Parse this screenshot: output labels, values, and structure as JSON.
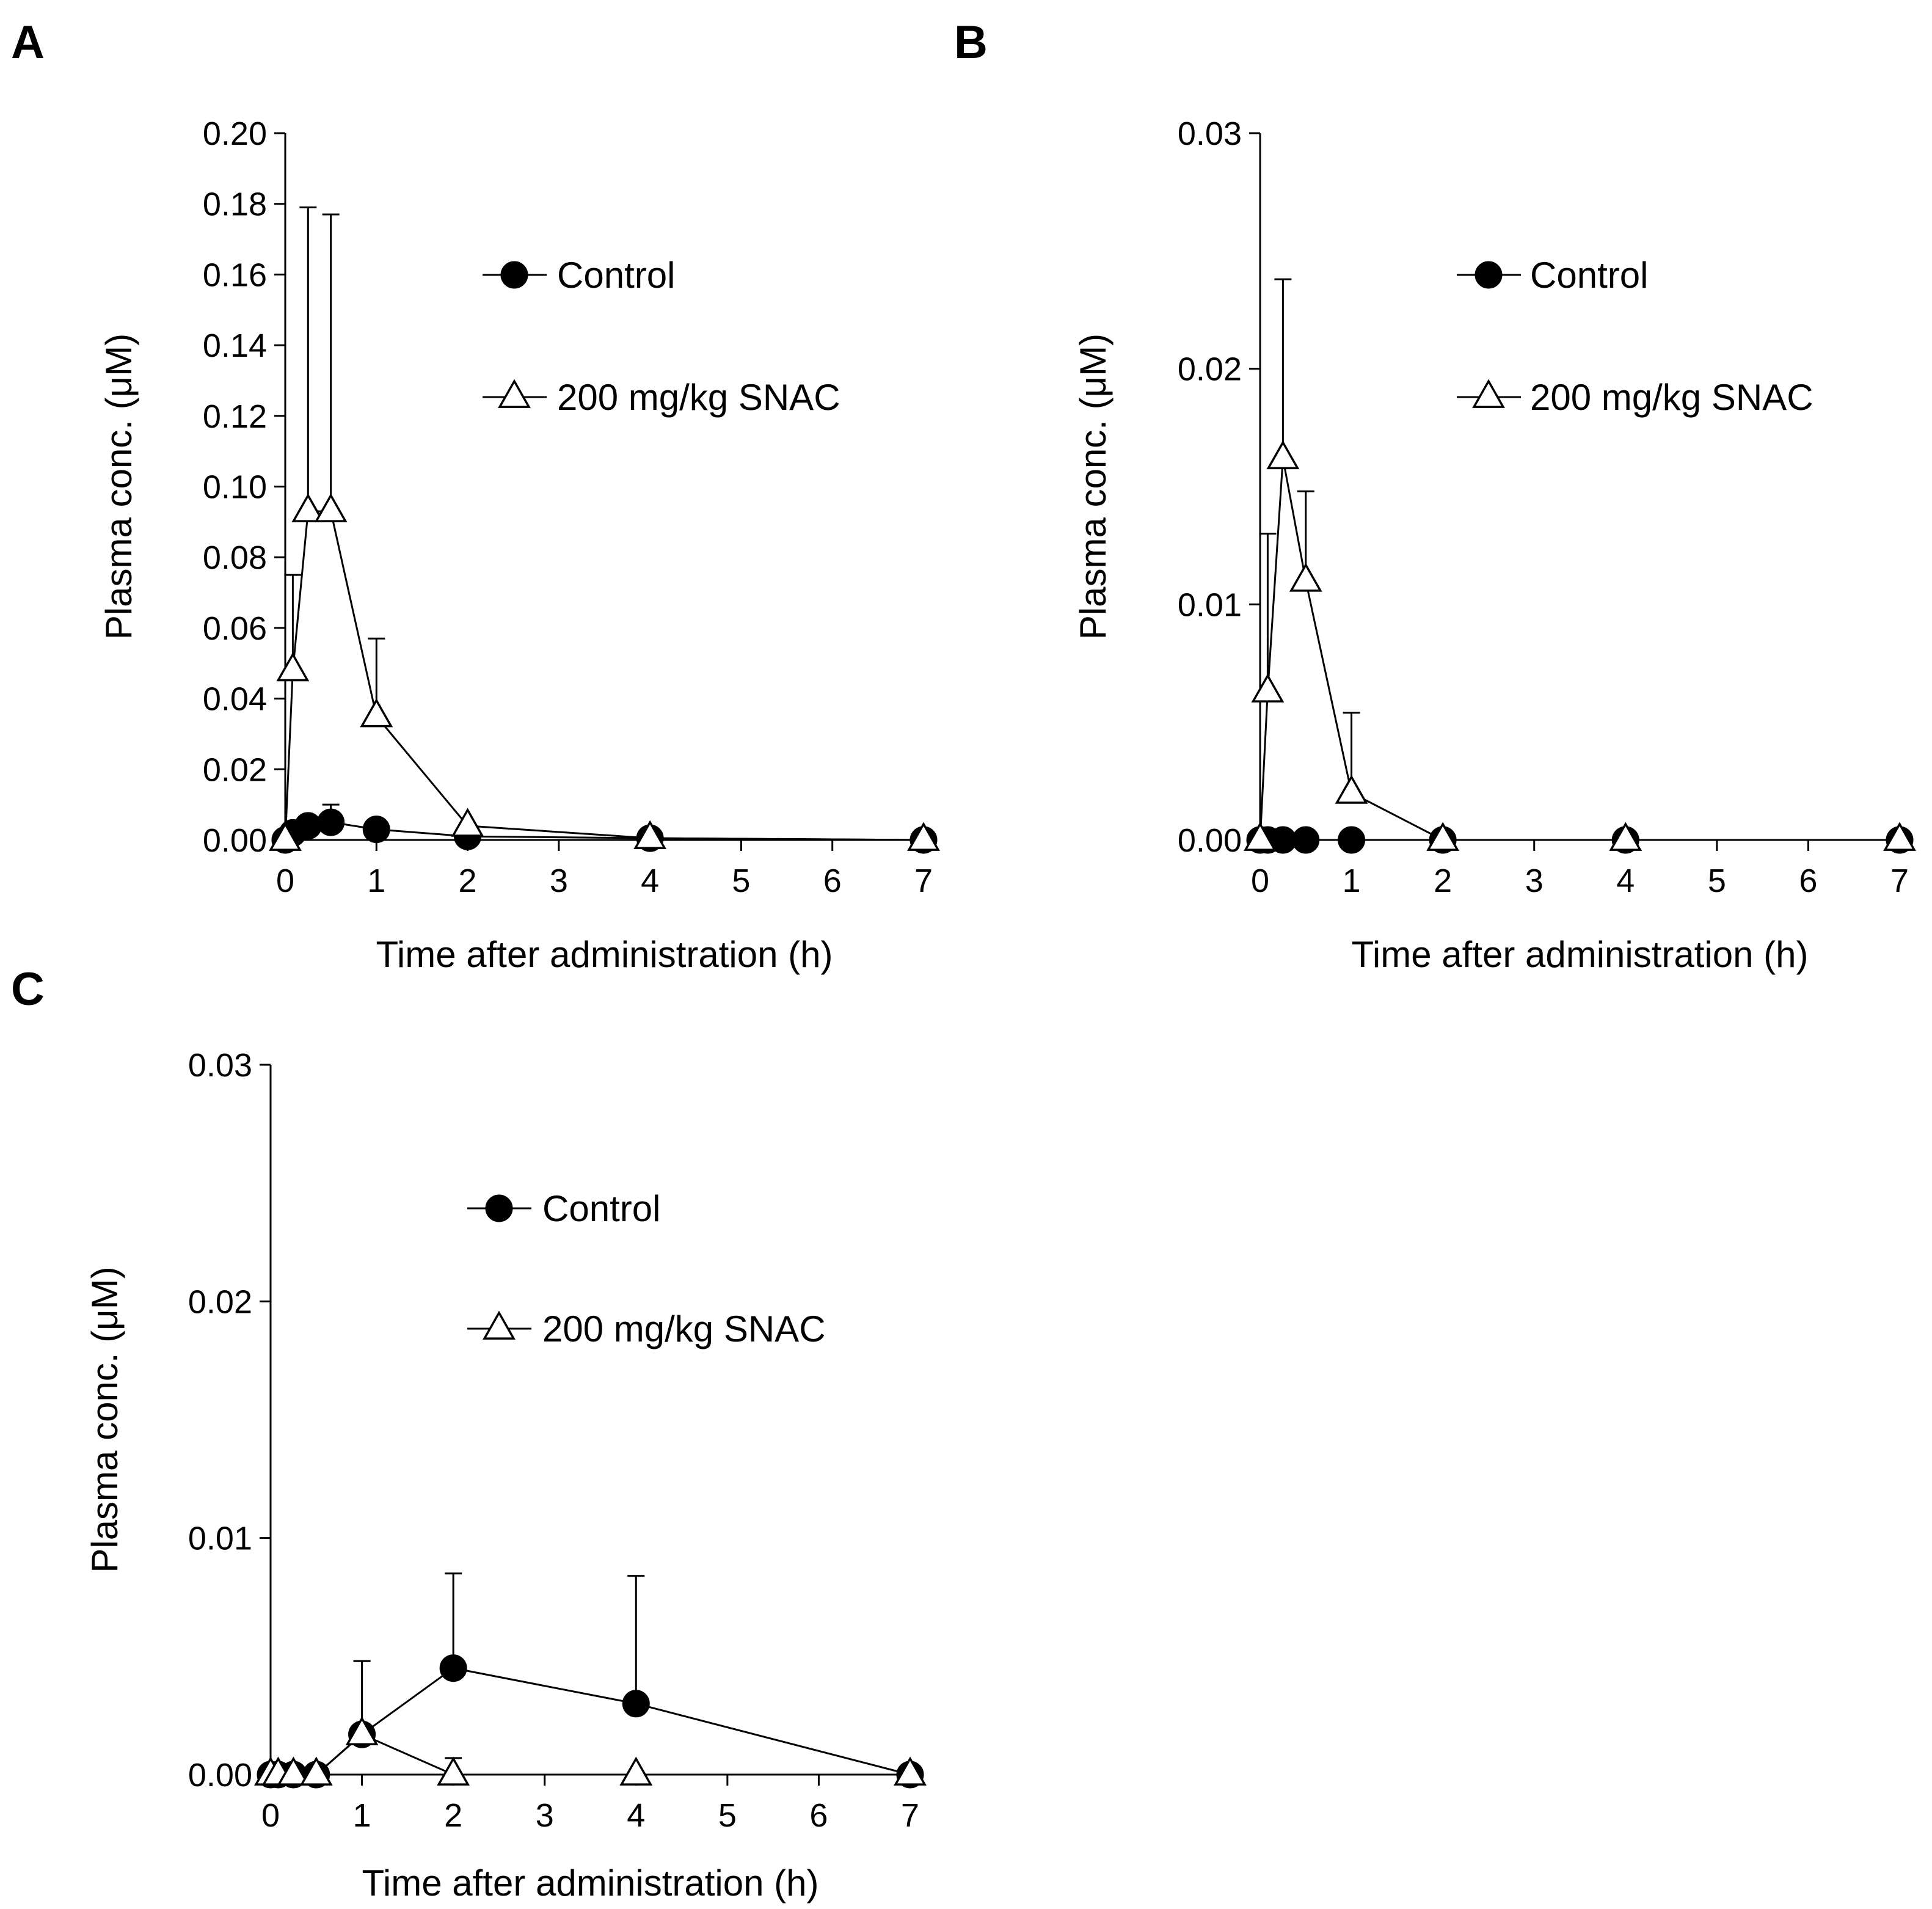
{
  "chart_data": [
    {
      "panel": "A",
      "type": "line",
      "xlabel": "Time after administration (h)",
      "ylabel": "Plasma conc. (μM)",
      "xlim": [
        0,
        7
      ],
      "ylim": [
        0,
        0.2
      ],
      "x_ticks": [
        "0",
        "1",
        "2",
        "3",
        "4",
        "5",
        "6",
        "7"
      ],
      "y_ticks": [
        "0.00",
        "0.02",
        "0.04",
        "0.06",
        "0.08",
        "0.10",
        "0.12",
        "0.14",
        "0.16",
        "0.18",
        "0.20"
      ],
      "legend_position": "upper-right",
      "grid": false,
      "series": [
        {
          "name": "Control",
          "marker": "filled-circle",
          "x": [
            0,
            0.083,
            0.25,
            0.5,
            1,
            2,
            4,
            7
          ],
          "y": [
            0,
            0.002,
            0.004,
            0.005,
            0.003,
            0.001,
            0.0005,
            0
          ],
          "error": [
            0,
            0,
            0,
            0.005,
            0,
            0,
            0,
            0
          ]
        },
        {
          "name": "200 mg/kg SNAC",
          "marker": "open-triangle",
          "x": [
            0,
            0.083,
            0.25,
            0.5,
            1,
            2,
            4,
            7
          ],
          "y": [
            0,
            0.048,
            0.093,
            0.093,
            0.035,
            0.004,
            0.0005,
            0
          ],
          "error": [
            0,
            0.027,
            0.086,
            0.084,
            0.022,
            0,
            0,
            0
          ]
        }
      ]
    },
    {
      "panel": "B",
      "type": "line",
      "xlabel": "Time after administration (h)",
      "ylabel": "Plasma conc. (μM)",
      "xlim": [
        0,
        7
      ],
      "ylim": [
        0,
        0.03
      ],
      "x_ticks": [
        "0",
        "1",
        "2",
        "3",
        "4",
        "5",
        "6",
        "7"
      ],
      "y_ticks": [
        "0.00",
        "0.01",
        "0.02",
        "0.03"
      ],
      "legend_position": "upper-right",
      "grid": false,
      "series": [
        {
          "name": "Control",
          "marker": "filled-circle",
          "x": [
            0,
            0.083,
            0.25,
            0.5,
            1,
            2,
            4,
            7
          ],
          "y": [
            0,
            0,
            0,
            0,
            0,
            0,
            0,
            0
          ],
          "error": [
            0,
            0,
            0,
            0,
            0,
            0,
            0,
            0
          ]
        },
        {
          "name": "200 mg/kg SNAC",
          "marker": "open-triangle",
          "x": [
            0,
            0.083,
            0.25,
            0.5,
            1,
            2,
            4,
            7
          ],
          "y": [
            0,
            0.0063,
            0.0162,
            0.011,
            0.002,
            0,
            0,
            0
          ],
          "error": [
            0,
            0.0067,
            0.0076,
            0.0038,
            0.0034,
            0,
            0,
            0
          ]
        }
      ]
    },
    {
      "panel": "C",
      "type": "line",
      "xlabel": "Time after administration (h)",
      "ylabel": "Plasma conc. (μM)",
      "xlim": [
        0,
        7
      ],
      "ylim": [
        0,
        0.03
      ],
      "x_ticks": [
        "0",
        "1",
        "2",
        "3",
        "4",
        "5",
        "6",
        "7"
      ],
      "y_ticks": [
        "0.00",
        "0.01",
        "0.02",
        "0.03"
      ],
      "legend_position": "upper-right",
      "grid": false,
      "series": [
        {
          "name": "Control",
          "marker": "filled-circle",
          "x": [
            0,
            0.083,
            0.25,
            0.5,
            1,
            2,
            4,
            7
          ],
          "y": [
            0,
            0,
            0,
            0,
            0.0017,
            0.0045,
            0.003,
            0
          ],
          "error": [
            0,
            0,
            0,
            0,
            0.0031,
            0.004,
            0.0054,
            0
          ]
        },
        {
          "name": "200 mg/kg SNAC",
          "marker": "open-triangle",
          "x": [
            0,
            0.083,
            0.25,
            0.5,
            1,
            2,
            4,
            7
          ],
          "y": [
            0,
            0,
            0,
            0,
            0.0017,
            0,
            0,
            0
          ],
          "error": [
            0,
            0,
            0,
            0,
            0.0031,
            0.0007,
            0,
            0
          ]
        }
      ]
    }
  ]
}
